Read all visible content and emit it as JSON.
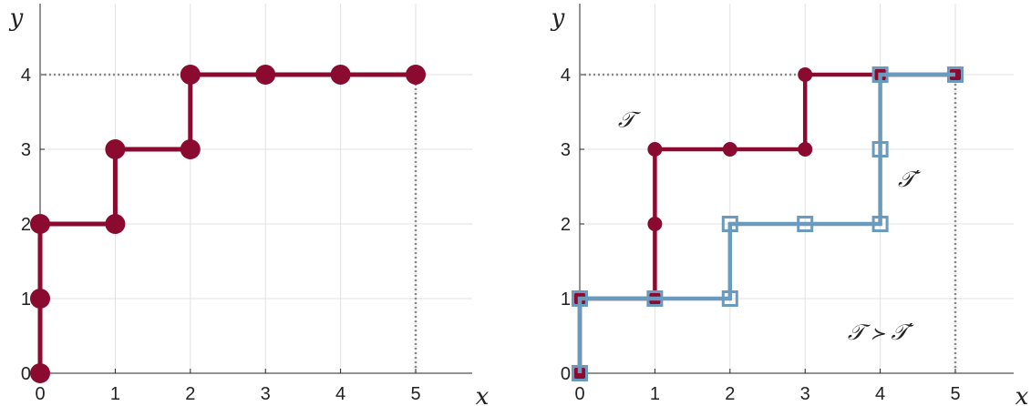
{
  "chart_data": [
    {
      "type": "line",
      "xlabel": "x",
      "ylabel": "y",
      "xlim": [
        0,
        5
      ],
      "ylim": [
        0,
        4
      ],
      "xticks": [
        "0",
        "1",
        "2",
        "3",
        "4",
        "5"
      ],
      "yticks": [
        "0",
        "1",
        "2",
        "3",
        "4"
      ],
      "grid": true,
      "reference_lines": {
        "x": 5,
        "y": 4,
        "style": "dotted"
      },
      "series": [
        {
          "color": "#8a0a30",
          "marker": "circle-large",
          "points": [
            [
              0,
              0
            ],
            [
              0,
              1
            ],
            [
              0,
              2
            ],
            [
              1,
              2
            ],
            [
              1,
              3
            ],
            [
              2,
              3
            ],
            [
              2,
              4
            ],
            [
              3,
              4
            ],
            [
              4,
              4
            ],
            [
              5,
              4
            ]
          ]
        }
      ],
      "annotations": []
    },
    {
      "type": "line",
      "xlabel": "x",
      "ylabel": "y",
      "xlim": [
        0,
        5
      ],
      "ylim": [
        0,
        4
      ],
      "xticks": [
        "0",
        "1",
        "2",
        "3",
        "4",
        "5"
      ],
      "yticks": [
        "0",
        "1",
        "2",
        "3",
        "4"
      ],
      "grid": true,
      "reference_lines": {
        "x": 5,
        "y": 4,
        "style": "dotted"
      },
      "series": [
        {
          "name": "𝒯",
          "color": "#8a0a30",
          "marker": "circle",
          "points": [
            [
              0,
              0
            ],
            [
              0,
              1
            ],
            [
              1,
              1
            ],
            [
              1,
              2
            ],
            [
              1,
              3
            ],
            [
              2,
              3
            ],
            [
              3,
              3
            ],
            [
              3,
              4
            ],
            [
              4,
              4
            ],
            [
              5,
              4
            ]
          ]
        },
        {
          "name": "𝒯′",
          "color": "#6a9bbf",
          "marker": "square-open",
          "points": [
            [
              0,
              0
            ],
            [
              0,
              1
            ],
            [
              1,
              1
            ],
            [
              2,
              1
            ],
            [
              2,
              2
            ],
            [
              3,
              2
            ],
            [
              4,
              2
            ],
            [
              4,
              3
            ],
            [
              4,
              4
            ],
            [
              5,
              4
            ]
          ]
        }
      ],
      "annotations": [
        {
          "text": "𝒯",
          "x": 0.62,
          "y": 3.3
        },
        {
          "text": "𝒯′",
          "x": 4.38,
          "y": 2.5
        },
        {
          "text": "𝒯 ≻ 𝒯′",
          "x": 4.0,
          "y": 0.45
        }
      ]
    }
  ]
}
